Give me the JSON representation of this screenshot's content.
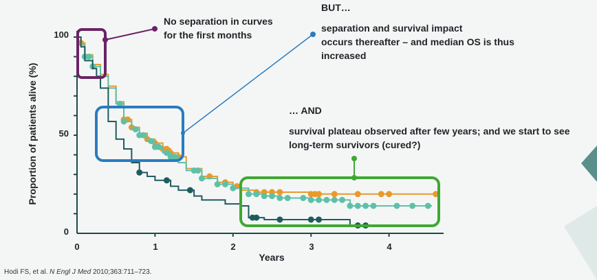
{
  "chart_data": {
    "type": "line",
    "title": "",
    "xlabel": "Years",
    "ylabel": "Proportion of patients alive (%)",
    "xlim": [
      0,
      4.6
    ],
    "ylim": [
      0,
      100
    ],
    "x_ticks": [
      "0",
      "1",
      "2",
      "3",
      "4"
    ],
    "y_ticks": [
      "0",
      "50",
      "100"
    ],
    "grid": false,
    "colors": {
      "orange": "#e89a2c",
      "teal": "#5fc0a8",
      "dark": "#1f5b5e"
    },
    "series": [
      {
        "color": "#e89a2c",
        "x": [
          0,
          0.05,
          0.1,
          0.2,
          0.3,
          0.4,
          0.5,
          0.6,
          0.7,
          0.8,
          0.9,
          1.0,
          1.1,
          1.2,
          1.3,
          1.4,
          1.6,
          1.8,
          2.0,
          2.1,
          2.3,
          2.6,
          3.0,
          3.5,
          4.0,
          4.6
        ],
        "y": [
          100,
          97,
          91,
          86,
          81,
          75,
          67,
          58,
          54,
          51,
          48,
          46,
          43,
          41,
          39,
          33,
          29,
          26,
          24,
          22,
          21,
          21,
          20,
          20,
          20,
          20
        ],
        "censor_x": [
          0.05,
          0.6,
          0.65,
          0.7,
          0.9,
          1.0,
          1.1,
          1.15,
          1.2,
          1.3,
          1.7,
          1.9,
          2.05,
          2.3,
          2.4,
          2.5,
          2.6,
          3.0,
          3.05,
          3.1,
          3.3,
          3.6,
          3.9,
          4.0,
          4.6
        ]
      },
      {
        "color": "#5fc0a8",
        "x": [
          0,
          0.05,
          0.1,
          0.2,
          0.3,
          0.4,
          0.5,
          0.6,
          0.7,
          0.8,
          0.9,
          1.0,
          1.1,
          1.2,
          1.3,
          1.4,
          1.6,
          1.8,
          2.0,
          2.2,
          2.4,
          2.6,
          3.0,
          3.5,
          4.0,
          4.55
        ],
        "y": [
          100,
          96,
          90,
          85,
          80,
          74,
          66,
          57,
          53,
          50,
          47,
          44,
          41,
          39,
          36,
          32,
          28,
          25,
          23,
          20,
          19,
          18,
          17,
          14,
          14,
          14
        ],
        "censor_x": [
          0.1,
          0.15,
          0.2,
          0.55,
          0.6,
          0.75,
          0.8,
          0.85,
          0.95,
          1.0,
          1.05,
          1.15,
          1.2,
          1.25,
          1.5,
          1.55,
          1.6,
          1.8,
          1.9,
          2.0,
          2.2,
          2.3,
          2.4,
          2.5,
          2.6,
          2.7,
          2.9,
          3.0,
          3.1,
          3.2,
          3.3,
          3.4,
          3.5,
          3.6,
          3.7,
          3.8,
          4.1,
          4.3,
          4.5
        ]
      },
      {
        "color": "#1f5b5e",
        "x": [
          0,
          0.05,
          0.1,
          0.2,
          0.25,
          0.3,
          0.4,
          0.5,
          0.6,
          0.7,
          0.8,
          0.9,
          1.0,
          1.2,
          1.3,
          1.5,
          1.6,
          1.9,
          2.1,
          2.2,
          2.4,
          2.8,
          3.0,
          3.5,
          3.7
        ],
        "y": [
          100,
          95,
          88,
          84,
          80,
          74,
          57,
          48,
          43,
          36,
          31,
          29,
          27,
          24,
          22,
          19,
          17,
          15,
          14,
          8,
          7,
          7,
          7,
          4,
          4
        ],
        "censor_x": [
          0.8,
          1.15,
          1.45,
          2.25,
          2.3,
          2.6,
          3.0,
          3.1,
          3.6,
          3.7
        ]
      }
    ],
    "annotations": {
      "first_months": "No separation in curves",
      "first_months_2": "for the first months",
      "but": "BUT…",
      "separation_1": "separation and survival impact",
      "separation_2": "occurs thereafter – and median OS is thus",
      "separation_3": "increased",
      "and": "… AND",
      "plateau_1": "survival plateau observed after few years; and we start to see",
      "plateau_2": "long-term survivors (cured?)"
    },
    "citation": {
      "authors": "Hodi FS, et al. ",
      "journal": "N Engl J Med",
      "ref": " 2010;363:711–723."
    }
  }
}
